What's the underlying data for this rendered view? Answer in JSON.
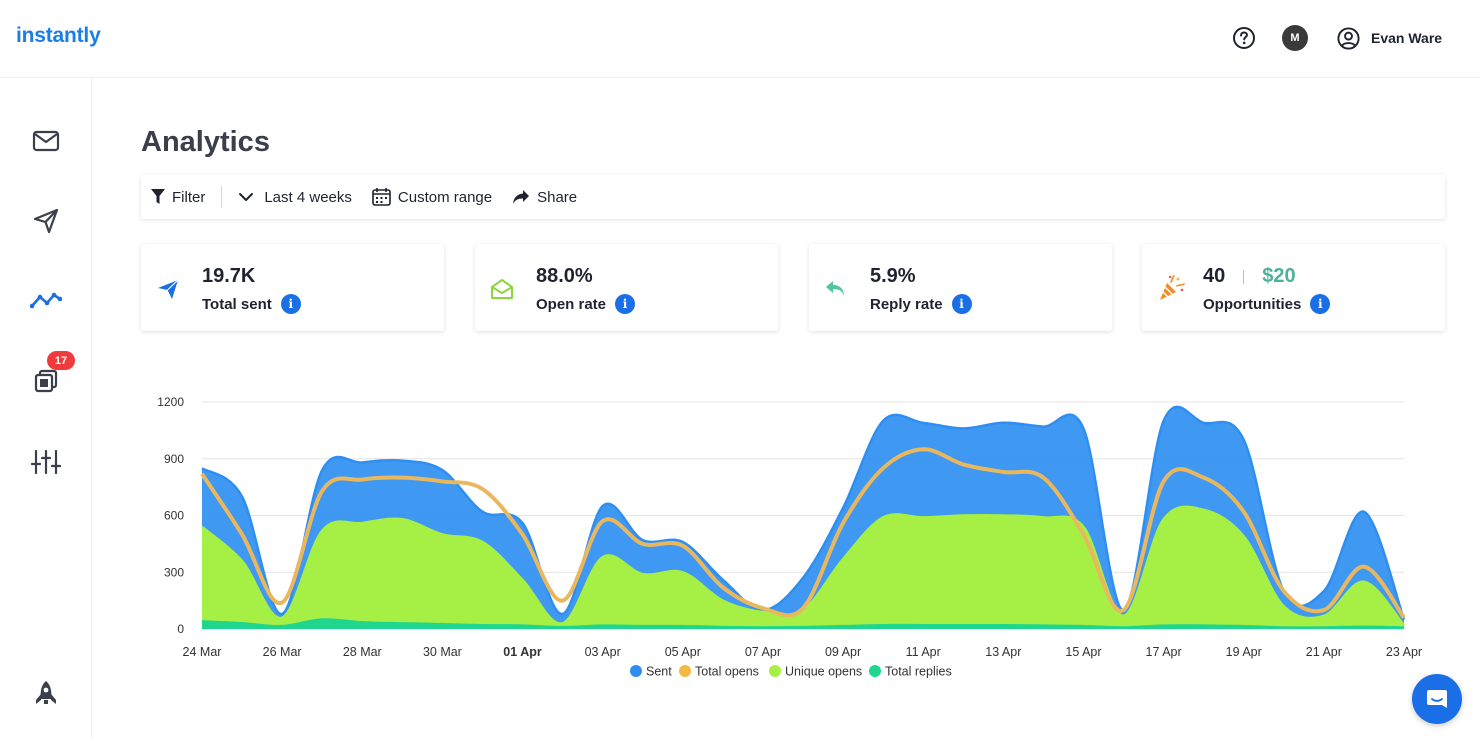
{
  "app": {
    "logo_text": "instantly"
  },
  "header": {
    "help_icon": "question-circle-icon",
    "workspace_initial": "M",
    "user_name": "Evan Ware",
    "user_icon": "user-circle-icon"
  },
  "sidebar": {
    "items": [
      {
        "id": "inbox",
        "icon": "mail-icon"
      },
      {
        "id": "campaigns",
        "icon": "send-icon"
      },
      {
        "id": "analytics",
        "icon": "trend-line-icon",
        "active": true
      },
      {
        "id": "unibox",
        "icon": "stack-icon",
        "badge": "17"
      },
      {
        "id": "settings",
        "icon": "sliders-icon"
      },
      {
        "id": "launch",
        "icon": "rocket-icon"
      }
    ],
    "active_color": "#1a6fe6",
    "badge_color": "#ef3b3b"
  },
  "page": {
    "title": "Analytics"
  },
  "toolbar": {
    "filter_label": "Filter",
    "range_label": "Last 4 weeks",
    "custom_range_label": "Custom range",
    "share_label": "Share"
  },
  "stats": [
    {
      "value": "19.7K",
      "label": "Total sent",
      "icon": "paper-plane-icon",
      "info": "i"
    },
    {
      "value": "88.0%",
      "label": "Open rate",
      "icon": "open-envelope-icon",
      "info": "i"
    },
    {
      "value": "5.9%",
      "label": "Reply rate",
      "icon": "reply-arrow-icon",
      "info": "i"
    },
    {
      "value": "40",
      "money": "$20",
      "label": "Opportunities",
      "icon": "party-popper-icon",
      "info": "i"
    }
  ],
  "chart_data": {
    "type": "area",
    "xlabel": "",
    "ylabel": "",
    "ylim": [
      0,
      1200
    ],
    "yticks": [
      0,
      300,
      600,
      900,
      1200
    ],
    "xtick_labels": [
      "24 Mar",
      "26 Mar",
      "28 Mar",
      "30 Mar",
      "01 Apr",
      "03 Apr",
      "05 Apr",
      "07 Apr",
      "09 Apr",
      "11 Apr",
      "13 Apr",
      "15 Apr",
      "17 Apr",
      "19 Apr",
      "21 Apr",
      "23 Apr"
    ],
    "bold_tick": "01 Apr",
    "grid": true,
    "legend_position": "bottom-center",
    "x": [
      "24 Mar",
      "25 Mar",
      "26 Mar",
      "27 Mar",
      "28 Mar",
      "29 Mar",
      "30 Mar",
      "31 Mar",
      "01 Apr",
      "02 Apr",
      "03 Apr",
      "04 Apr",
      "05 Apr",
      "06 Apr",
      "07 Apr",
      "08 Apr",
      "09 Apr",
      "10 Apr",
      "11 Apr",
      "12 Apr",
      "13 Apr",
      "14 Apr",
      "15 Apr",
      "16 Apr",
      "17 Apr",
      "18 Apr",
      "19 Apr",
      "20 Apr",
      "21 Apr",
      "22 Apr",
      "23 Apr"
    ],
    "series": [
      {
        "name": "Sent",
        "color": "#2f8ff0",
        "values": [
          850,
          700,
          80,
          840,
          880,
          890,
          840,
          620,
          560,
          80,
          650,
          470,
          460,
          260,
          100,
          270,
          640,
          1100,
          1090,
          1060,
          1090,
          1070,
          1060,
          100,
          1100,
          1090,
          1000,
          200,
          200,
          620,
          50
        ]
      },
      {
        "name": "Total opens",
        "color": "#f5b942",
        "values": [
          820,
          500,
          140,
          730,
          790,
          800,
          780,
          740,
          500,
          150,
          570,
          450,
          440,
          220,
          110,
          110,
          560,
          850,
          950,
          870,
          830,
          800,
          500,
          100,
          780,
          800,
          620,
          200,
          100,
          330,
          60
        ]
      },
      {
        "name": "Unique opens",
        "color": "#a6ef45",
        "values": [
          540,
          360,
          60,
          520,
          560,
          580,
          500,
          460,
          260,
          30,
          380,
          290,
          300,
          150,
          90,
          100,
          370,
          590,
          590,
          600,
          600,
          590,
          540,
          70,
          580,
          630,
          490,
          120,
          70,
          250,
          20
        ]
      },
      {
        "name": "Total replies",
        "color": "#1fd68f",
        "values": [
          40,
          30,
          15,
          50,
          35,
          30,
          25,
          20,
          18,
          10,
          18,
          15,
          15,
          10,
          8,
          10,
          15,
          20,
          20,
          20,
          20,
          18,
          15,
          8,
          18,
          18,
          15,
          8,
          8,
          12,
          8
        ]
      }
    ]
  },
  "chat": {
    "icon": "chat-bubble-icon"
  }
}
